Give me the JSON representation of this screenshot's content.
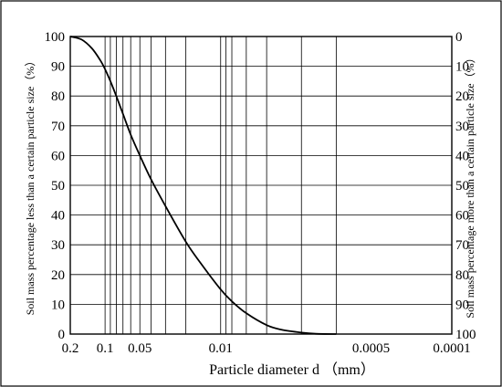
{
  "chart_data": {
    "type": "line",
    "xlabel": "Particle diameter d （mm）",
    "ylabel_left": "Soil mass percentage less than a certain particle size（%）",
    "ylabel_right": "Soil mass percentage more than a certain particle size（%）",
    "x_scale": "log",
    "x_reversed": true,
    "xlim": [
      0.2,
      0.0001
    ],
    "ylim": [
      0,
      100
    ],
    "grid": true,
    "x_tick_labels": [
      {
        "value": 0.2,
        "label": "0.2"
      },
      {
        "value": 0.1,
        "label": "0.1"
      },
      {
        "value": 0.05,
        "label": "0.05"
      },
      {
        "value": 0.01,
        "label": "0.01"
      },
      {
        "value": 0.0005,
        "label": "0.0005"
      },
      {
        "value": 0.0001,
        "label": "0.0001"
      }
    ],
    "left_ticks": [
      "0",
      "10",
      "20",
      "30",
      "40",
      "50",
      "60",
      "70",
      "80",
      "90",
      "100"
    ],
    "right_ticks": [
      "100",
      "90",
      "80",
      "70",
      "60",
      "50",
      "40",
      "30",
      "20",
      "10",
      "0"
    ],
    "x_gridlines": [
      0.1,
      0.09,
      0.08,
      0.07,
      0.06,
      0.05,
      0.04,
      0.03,
      0.02,
      0.01,
      0.009,
      0.008,
      0.006,
      0.004,
      0.002,
      0.001
    ],
    "series": [
      {
        "x": [
          0.2,
          0.16,
          0.13,
          0.11,
          0.1,
          0.09,
          0.08,
          0.07,
          0.06,
          0.05,
          0.04,
          0.03,
          0.02,
          0.015,
          0.01,
          0.008,
          0.006,
          0.004,
          0.003,
          0.002,
          0.0015,
          0.001
        ],
        "y": [
          100,
          99,
          96,
          92,
          89,
          85,
          80,
          74,
          67,
          60,
          52,
          43,
          31,
          24,
          15,
          11,
          7,
          3,
          1.5,
          0.5,
          0.1,
          0
        ]
      }
    ]
  }
}
